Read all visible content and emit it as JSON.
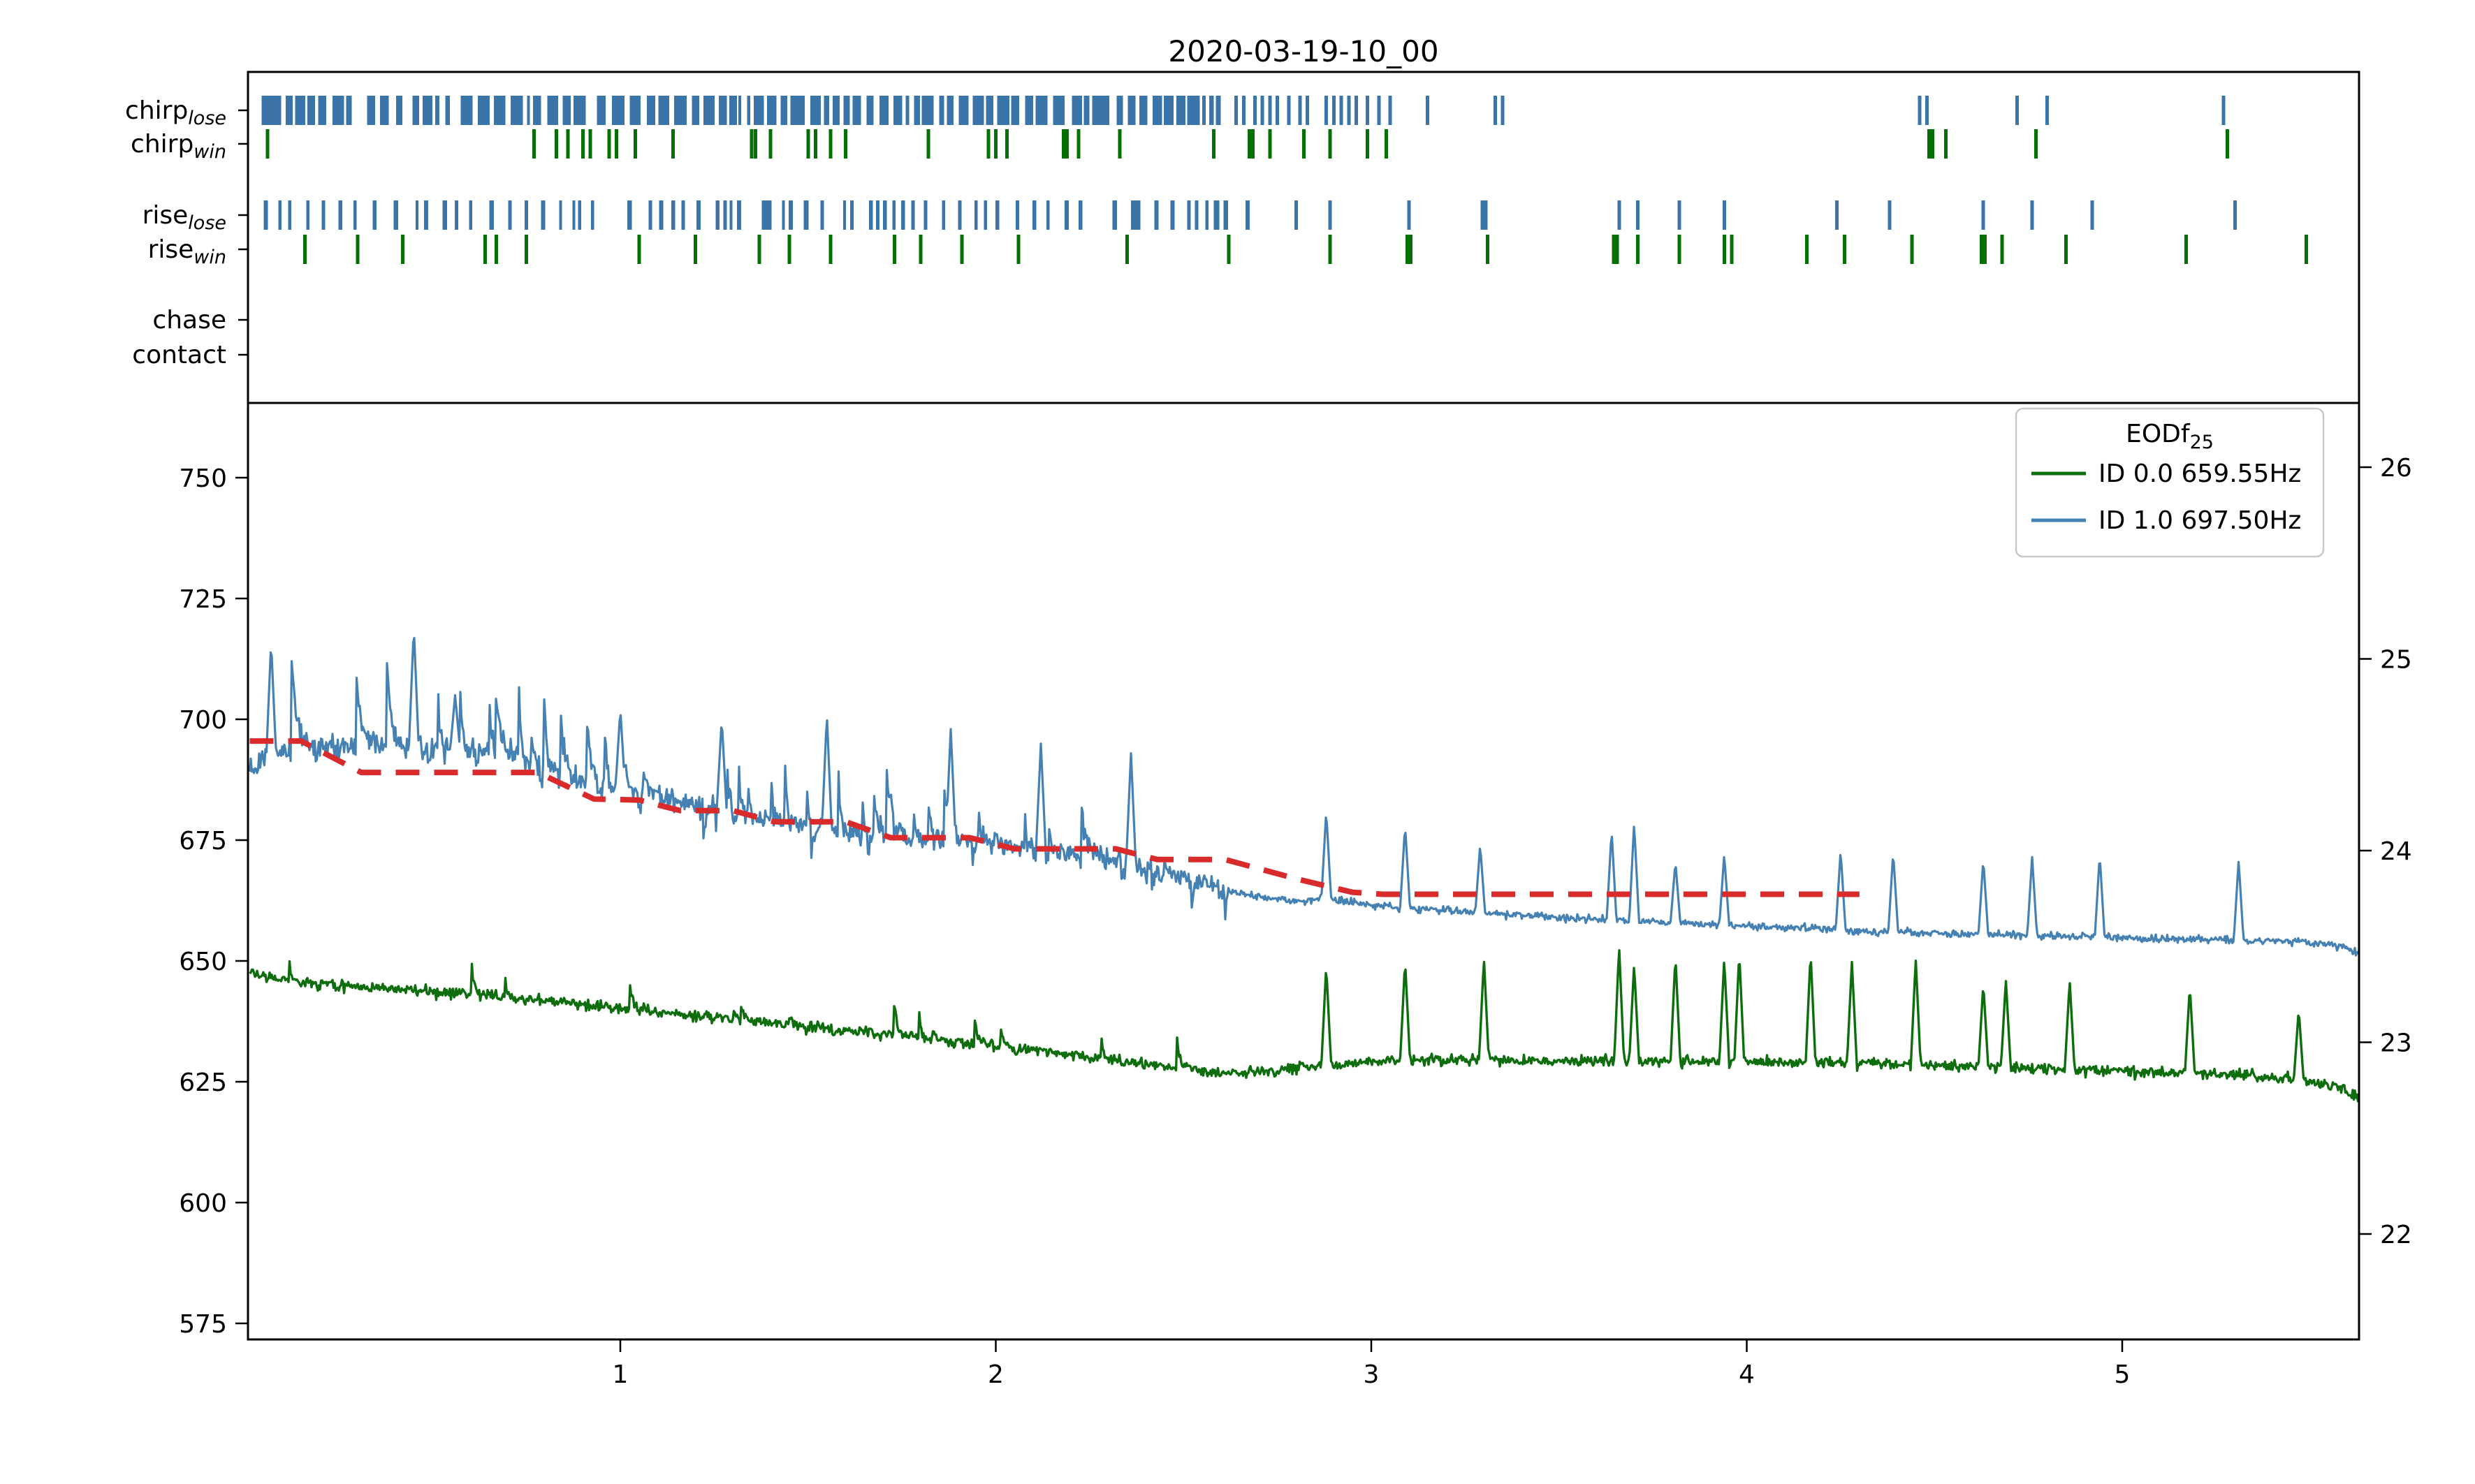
{
  "title": "2020-03-19-10_00",
  "colors": {
    "raster_blue": "#3b74a8",
    "raster_green": "#047004",
    "trace_blue": "#4581b3",
    "trace_green": "#0e6e0e",
    "threshold_red": "#d92b2b",
    "spine_black": "#000000",
    "legend_border": "#c9c9c9"
  },
  "chart_data": {
    "type": "line",
    "title": "2020-03-19-10_00",
    "xlabel": "",
    "ylabel_left": "",
    "ylabel_right": "",
    "x_ticks": [
      1,
      2,
      3,
      4,
      5
    ],
    "left_y_ticks": [
      575,
      600,
      625,
      650,
      675,
      700,
      725,
      750
    ],
    "right_y_ticks": [
      22,
      23,
      24,
      25,
      26
    ],
    "xlim": [
      0.009,
      5.631
    ],
    "left_ylim": [
      571.7,
      765.5
    ],
    "right_ylim": [
      21.45,
      26.34
    ],
    "grid": false,
    "legend": {
      "title_main": "EODf",
      "title_sub": "25",
      "position": "upper right",
      "entries": [
        {
          "label": "ID 0.0 659.55Hz",
          "color": "#0e6e0e"
        },
        {
          "label": "ID 1.0 697.50Hz",
          "color": "#4581b3"
        }
      ]
    },
    "raster": {
      "tick_half_height": 21,
      "rows": [
        {
          "label_main": "chirp",
          "label_sub": "lose",
          "color": "#3b74a8",
          "center_y": 158,
          "dense": {
            "from": 0.045,
            "to": 2.615,
            "seed": 7,
            "min_w": 4,
            "max_w": 18,
            "wide_prob": 0.09,
            "wide_extra": 24,
            "min_gap": 2,
            "max_gap": 9,
            "big_gap_prob": 0.1,
            "big_gap_extra": 16
          },
          "ticks": [
            2.64,
            2.66,
            2.69,
            2.71,
            2.73,
            2.75,
            2.78,
            2.81,
            2.83,
            2.88,
            2.9,
            2.92,
            2.94,
            2.96,
            2.99,
            3.02,
            3.05,
            3.15,
            3.33,
            3.35,
            4.46,
            4.48,
            4.72,
            4.8,
            5.27
          ],
          "thick": []
        },
        {
          "label_main": "chirp",
          "label_sub": "win",
          "color": "#047004",
          "center_y": 206,
          "dense": null,
          "ticks": [
            0.06,
            0.77,
            0.83,
            0.86,
            0.9,
            0.92,
            0.97,
            0.99,
            1.04,
            1.14,
            1.35,
            1.36,
            1.4,
            1.5,
            1.52,
            1.56,
            1.6,
            1.82,
            1.98,
            2.0,
            2.03,
            2.18,
            2.19,
            2.22,
            2.33,
            2.58,
            2.73,
            2.82,
            2.89,
            2.99,
            3.04,
            4.53,
            4.77,
            5.28
          ],
          "thick": [
            2.68,
            4.49
          ]
        },
        {
          "label_main": "rise",
          "label_sub": "lose",
          "color": "#3b74a8",
          "center_y": 308,
          "dense": {
            "from": 0.05,
            "to": 2.7,
            "seed": 17,
            "min_w": 4,
            "max_w": 7,
            "wide_prob": 0.05,
            "wide_extra": 9,
            "min_gap": 3,
            "max_gap": 26,
            "big_gap_prob": 0.08,
            "big_gap_extra": 34
          },
          "ticks": [
            2.8,
            2.89,
            3.1,
            3.66,
            3.71,
            3.82,
            3.94,
            4.24,
            4.38,
            4.63,
            4.76,
            4.92,
            5.3
          ],
          "thick": [
            3.3
          ]
        },
        {
          "label_main": "rise",
          "label_sub": "win",
          "color": "#047004",
          "center_y": 357,
          "dense": null,
          "ticks": [
            0.16,
            0.3,
            0.42,
            0.64,
            0.67,
            0.75,
            1.05,
            1.2,
            1.37,
            1.45,
            1.56,
            1.73,
            1.8,
            1.91,
            2.06,
            2.35,
            2.62,
            2.89,
            3.31,
            3.71,
            3.82,
            3.94,
            3.96,
            4.16,
            4.26,
            4.44,
            4.68,
            4.85,
            5.17,
            5.49
          ],
          "thick": [
            3.1,
            3.65,
            4.63
          ]
        },
        {
          "label_main": "chase",
          "label_sub": "",
          "color": "#3b74a8",
          "center_y": 458,
          "dense": null,
          "ticks": [],
          "thick": []
        },
        {
          "label_main": "contact",
          "label_sub": "",
          "color": "#3b74a8",
          "center_y": 508,
          "dense": null,
          "ticks": [],
          "thick": []
        }
      ]
    },
    "series": [
      {
        "name": "ID 0.0 659.55Hz",
        "id": "0.0",
        "eodf_label": "659.55Hz",
        "color": "#0e6e0e",
        "line_width": 3.4,
        "seed": 29,
        "noise": {
          "sigma_a": 0.85,
          "sigma_b": 0.8,
          "split_x": 2.6,
          "event_prob": 0.02,
          "event_amp_min": 1.5,
          "event_amp_max": 4.5
        },
        "baseline_anchors": [
          [
            0.013,
            648.5
          ],
          [
            0.04,
            647.0
          ],
          [
            0.1,
            646.0
          ],
          [
            0.2,
            645.2
          ],
          [
            0.35,
            644.4
          ],
          [
            0.5,
            643.6
          ],
          [
            0.7,
            642.4
          ],
          [
            0.9,
            641.0
          ],
          [
            1.1,
            639.4
          ],
          [
            1.3,
            637.8
          ],
          [
            1.5,
            636.4
          ],
          [
            1.7,
            634.8
          ],
          [
            1.9,
            633.2
          ],
          [
            2.1,
            631.4
          ],
          [
            2.3,
            629.6
          ],
          [
            2.45,
            628.2
          ],
          [
            2.6,
            626.8
          ],
          [
            2.75,
            627.2
          ],
          [
            2.9,
            628.6
          ],
          [
            3.1,
            629.6
          ],
          [
            3.4,
            629.4
          ],
          [
            3.7,
            629.2
          ],
          [
            4.0,
            629.2
          ],
          [
            4.3,
            628.8
          ],
          [
            4.6,
            628.2
          ],
          [
            4.9,
            627.4
          ],
          [
            5.1,
            627.0
          ],
          [
            5.3,
            626.4
          ],
          [
            5.45,
            625.6
          ],
          [
            5.52,
            624.8
          ],
          [
            5.59,
            623.4
          ],
          [
            5.631,
            621.8
          ]
        ],
        "spikes": [
          [
            2.88,
            649.0
          ],
          [
            3.09,
            650.0
          ],
          [
            3.3,
            650.5
          ],
          [
            3.66,
            653.0
          ],
          [
            3.7,
            649.3
          ],
          [
            3.81,
            651.0
          ],
          [
            3.94,
            650.4
          ],
          [
            3.98,
            651.7
          ],
          [
            4.17,
            651.7
          ],
          [
            4.28,
            649.8
          ],
          [
            4.45,
            650.4
          ],
          [
            4.63,
            645.3
          ],
          [
            4.69,
            646.1
          ],
          [
            4.86,
            646.0
          ],
          [
            5.18,
            644.8
          ],
          [
            5.47,
            640.0
          ]
        ],
        "big_spikes": []
      },
      {
        "name": "ID 1.0 697.50Hz",
        "id": "1.0",
        "eodf_label": "697.50Hz",
        "color": "#4581b3",
        "line_width": 3.2,
        "seed": 13,
        "noise": {
          "sigma_a": 1.7,
          "sigma_b": 0.55,
          "split_x": 2.62,
          "event_prob": 0.07,
          "event_amp_min": 3.0,
          "event_amp_max": 20.0,
          "event_amp_slope": 4.6,
          "dip_prob": 0.03,
          "dip_amp": 6.0
        },
        "baseline_anchors": [
          [
            0.013,
            688.0
          ],
          [
            0.03,
            691.0
          ],
          [
            0.1,
            693.5
          ],
          [
            0.2,
            694.5
          ],
          [
            0.35,
            695.0
          ],
          [
            0.5,
            694.0
          ],
          [
            0.65,
            693.5
          ],
          [
            0.78,
            690.0
          ],
          [
            0.88,
            687.0
          ],
          [
            1.0,
            685.5
          ],
          [
            1.15,
            683.5
          ],
          [
            1.3,
            681.0
          ],
          [
            1.45,
            678.5
          ],
          [
            1.6,
            676.5
          ],
          [
            1.8,
            675.5
          ],
          [
            2.0,
            674.0
          ],
          [
            2.2,
            672.0
          ],
          [
            2.35,
            670.0
          ],
          [
            2.5,
            667.5
          ],
          [
            2.62,
            664.5
          ],
          [
            2.7,
            663.2
          ],
          [
            2.8,
            662.3
          ],
          [
            2.88,
            662.8
          ],
          [
            3.0,
            661.6
          ],
          [
            3.2,
            660.4
          ],
          [
            3.4,
            659.4
          ],
          [
            3.6,
            658.6
          ],
          [
            3.9,
            657.6
          ],
          [
            4.2,
            656.6
          ],
          [
            4.5,
            655.7
          ],
          [
            4.8,
            655.1
          ],
          [
            5.1,
            654.6
          ],
          [
            5.3,
            654.3
          ],
          [
            5.45,
            654.0
          ],
          [
            5.55,
            653.3
          ],
          [
            5.59,
            652.8
          ],
          [
            5.631,
            651.6
          ]
        ],
        "spikes": [
          [
            2.88,
            681.0
          ],
          [
            3.09,
            678.0
          ],
          [
            3.29,
            674.0
          ],
          [
            3.64,
            677.0
          ],
          [
            3.7,
            678.5
          ],
          [
            3.81,
            670.5
          ],
          [
            3.94,
            672.0
          ],
          [
            4.25,
            672.8
          ],
          [
            4.39,
            672.5
          ],
          [
            4.63,
            671.0
          ],
          [
            4.76,
            671.5
          ],
          [
            4.94,
            672.0
          ],
          [
            5.31,
            670.8
          ]
        ],
        "big_spikes": [
          [
            0.07,
            716.0
          ],
          [
            0.45,
            719.0
          ],
          [
            0.56,
            705.0
          ],
          [
            1.0,
            702.0
          ],
          [
            1.27,
            700.0
          ],
          [
            1.55,
            701.0
          ],
          [
            1.88,
            698.0
          ],
          [
            2.12,
            695.0
          ],
          [
            2.36,
            693.0
          ]
        ]
      }
    ],
    "threshold_line": {
      "name": "smoothed-loser-eodf",
      "color": "#d92b2b",
      "style": "dashed",
      "line_width": 8,
      "dash": "34 21",
      "anchors": [
        [
          0.013,
          695.5
        ],
        [
          0.15,
          695.5
        ],
        [
          0.31,
          689.0
        ],
        [
          0.78,
          689.0
        ],
        [
          0.93,
          683.5
        ],
        [
          1.05,
          683.3
        ],
        [
          1.16,
          681.1
        ],
        [
          1.3,
          681.1
        ],
        [
          1.41,
          678.8
        ],
        [
          1.6,
          678.8
        ],
        [
          1.72,
          675.5
        ],
        [
          1.93,
          675.5
        ],
        [
          2.05,
          673.2
        ],
        [
          2.32,
          673.2
        ],
        [
          2.43,
          671.0
        ],
        [
          2.61,
          671.0
        ],
        [
          2.8,
          667.0
        ],
        [
          2.95,
          664.2
        ],
        [
          3.03,
          663.8
        ],
        [
          4.3,
          663.8
        ]
      ]
    }
  }
}
